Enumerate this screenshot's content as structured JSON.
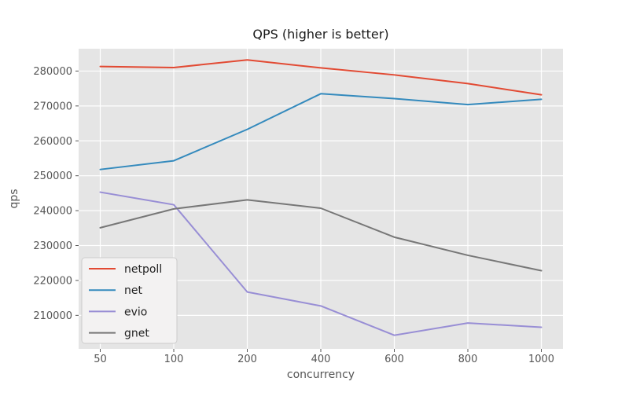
{
  "chart_data": {
    "type": "line",
    "title": "QPS (higher is better)",
    "xlabel": "concurrency",
    "ylabel": "qps",
    "categories": [
      50,
      100,
      200,
      400,
      600,
      800,
      1000
    ],
    "series": [
      {
        "name": "netpoll",
        "color": "#E24A33",
        "values": [
          281300,
          281000,
          283200,
          280900,
          278900,
          276400,
          273200
        ]
      },
      {
        "name": "net",
        "color": "#348ABD",
        "values": [
          251800,
          254300,
          263300,
          273500,
          272100,
          270400,
          271900
        ]
      },
      {
        "name": "evio",
        "color": "#988ED5",
        "values": [
          245300,
          241700,
          216700,
          212700,
          204300,
          207800,
          206600
        ]
      },
      {
        "name": "gnet",
        "color": "#777777",
        "values": [
          235100,
          240500,
          243100,
          240700,
          232400,
          227200,
          222800
        ]
      }
    ],
    "yticks": [
      210000,
      220000,
      230000,
      240000,
      250000,
      260000,
      270000,
      280000
    ],
    "ylim": [
      200400,
      286400
    ],
    "x_scale": "categorical-even-spacing",
    "grid": true,
    "legend": {
      "position": "lower-left",
      "entries": [
        "netpoll",
        "net",
        "evio",
        "gnet"
      ]
    },
    "style": {
      "plot_bg": "#E5E5E5",
      "figure_bg": "#FFFFFF",
      "grid_color": "#FFFFFF",
      "tick_color": "#555555",
      "label_color": "#555555",
      "title_color": "#1A1A1A",
      "legend_bg": "#F3F2F2",
      "legend_border": "#CCCCCC",
      "legend_text": "#222222"
    }
  }
}
